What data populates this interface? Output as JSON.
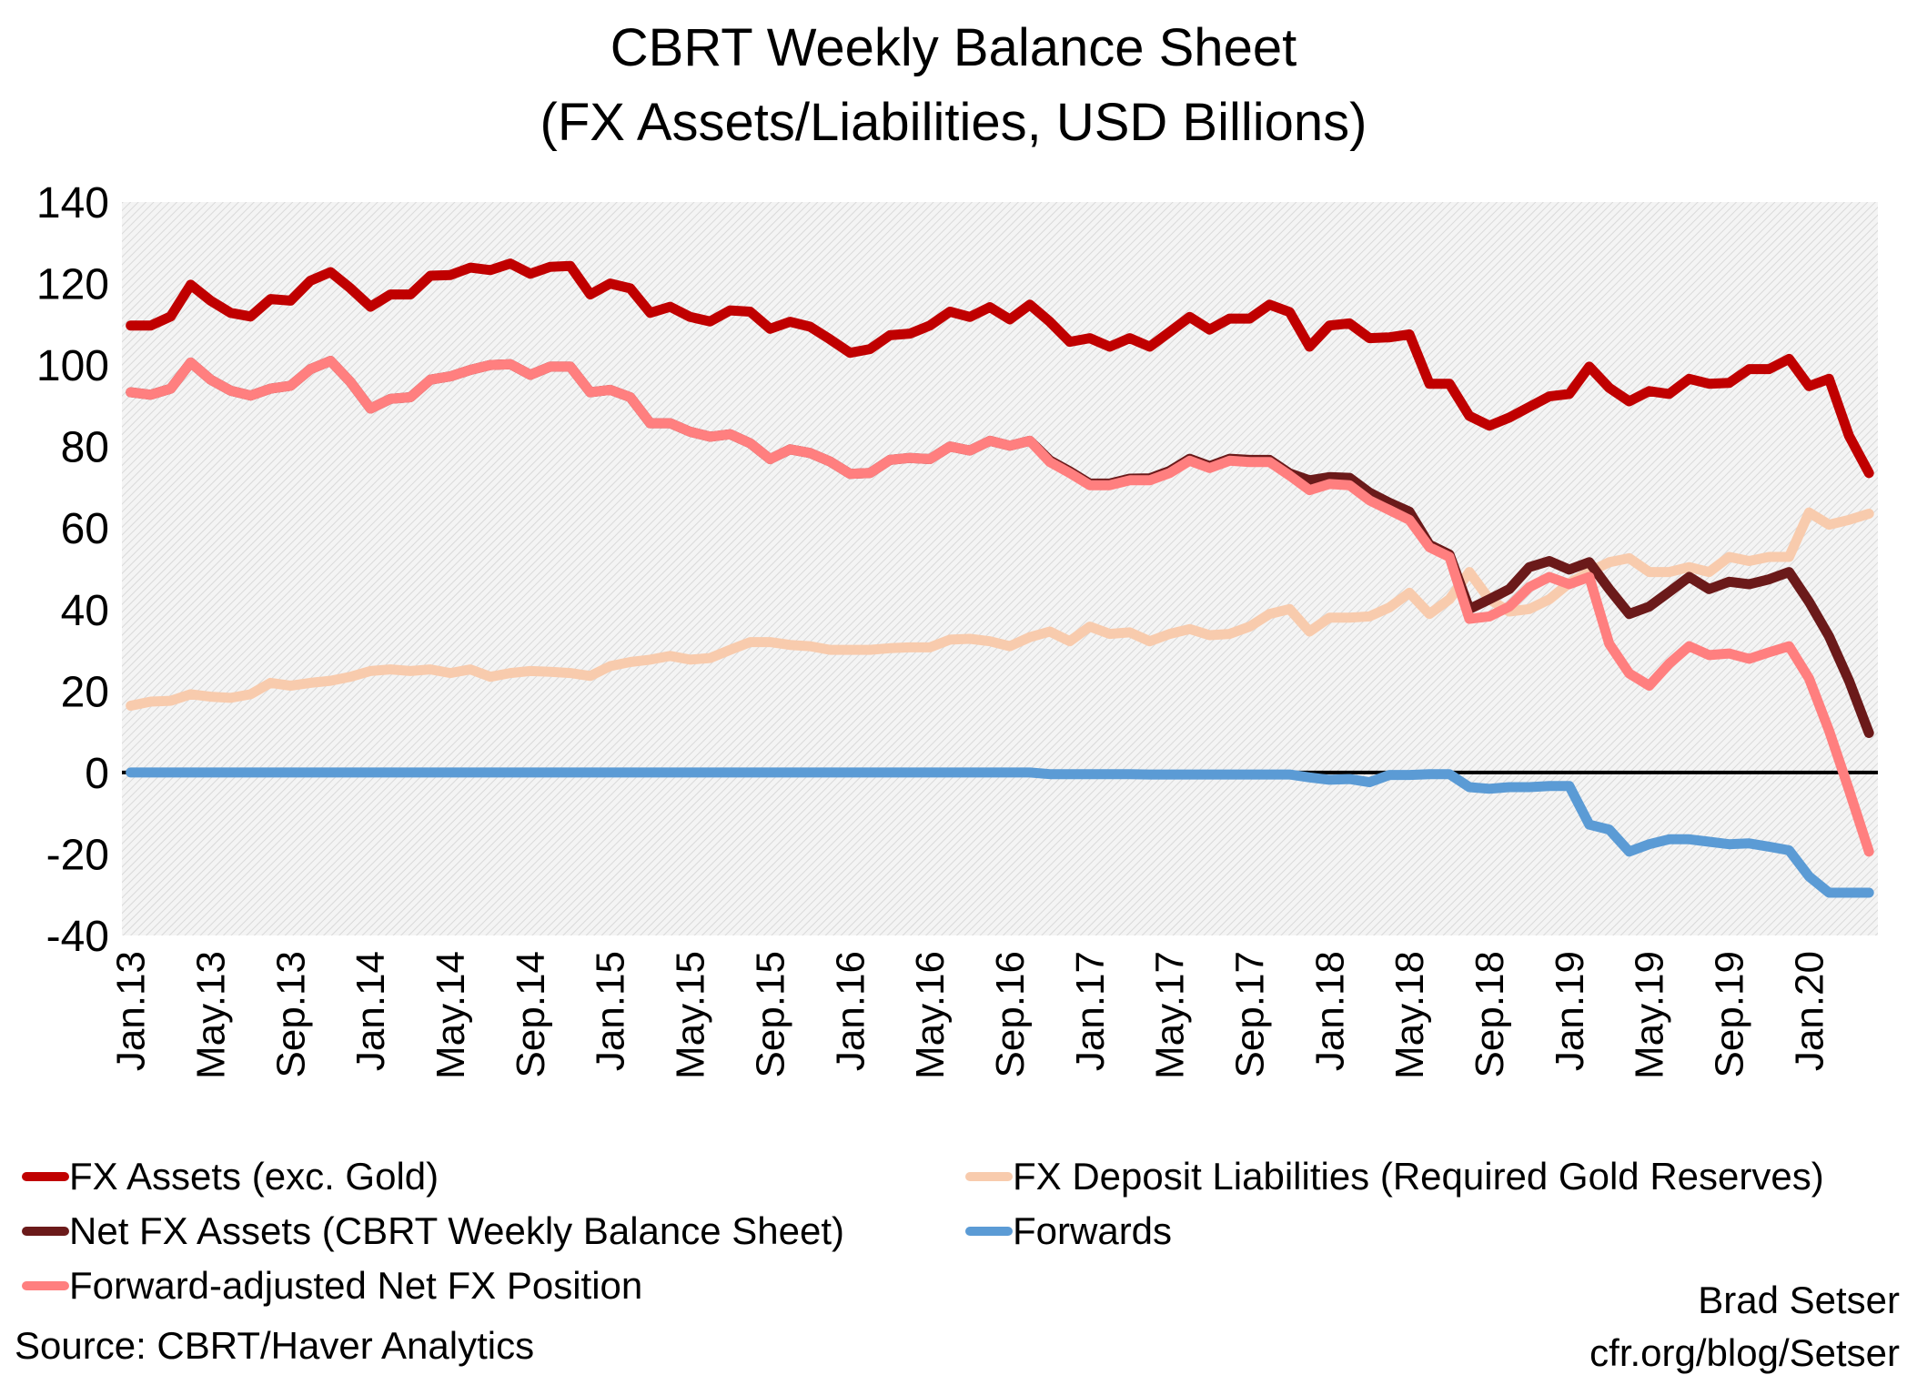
{
  "chart_data": {
    "type": "line",
    "title": "CBRT Weekly Balance Sheet",
    "subtitle": "(FX Assets/Liabilities, USD Billions)",
    "xlabel": "",
    "ylabel": "",
    "ylim": [
      -40,
      140
    ],
    "yticks": [
      140,
      120,
      100,
      80,
      60,
      40,
      20,
      0,
      -20,
      -40
    ],
    "xtick_labels": [
      "Jan.13",
      "May.13",
      "Sep.13",
      "Jan.14",
      "May.14",
      "Sep.14",
      "Jan.15",
      "May.15",
      "Sep.15",
      "Jan.16",
      "May.16",
      "Sep.16",
      "Jan.17",
      "May.17",
      "Sep.17",
      "Jan.18",
      "May.18",
      "Sep.18",
      "Jan.19",
      "May.19",
      "Sep.19",
      "Jan.20"
    ],
    "grid": false,
    "legend": "bottom",
    "x": [
      "Jan.13",
      "Feb.13",
      "Mar.13",
      "Apr.13",
      "May.13",
      "Jun.13",
      "Jul.13",
      "Aug.13",
      "Sep.13",
      "Oct.13",
      "Nov.13",
      "Dec.13",
      "Jan.14",
      "Feb.14",
      "Mar.14",
      "Apr.14",
      "May.14",
      "Jun.14",
      "Jul.14",
      "Aug.14",
      "Sep.14",
      "Oct.14",
      "Nov.14",
      "Dec.14",
      "Jan.15",
      "Feb.15",
      "Mar.15",
      "Apr.15",
      "May.15",
      "Jun.15",
      "Jul.15",
      "Aug.15",
      "Sep.15",
      "Oct.15",
      "Nov.15",
      "Dec.15",
      "Jan.16",
      "Feb.16",
      "Mar.16",
      "Apr.16",
      "May.16",
      "Jun.16",
      "Jul.16",
      "Aug.16",
      "Sep.16",
      "Oct.16",
      "Nov.16",
      "Dec.16",
      "Jan.17",
      "Feb.17",
      "Mar.17",
      "Apr.17",
      "May.17",
      "Jun.17",
      "Jul.17",
      "Aug.17",
      "Sep.17",
      "Oct.17",
      "Nov.17",
      "Dec.17",
      "Jan.18",
      "Feb.18",
      "Mar.18",
      "Apr.18",
      "May.18",
      "Jun.18",
      "Jul.18",
      "Aug.18",
      "Sep.18",
      "Oct.18",
      "Nov.18",
      "Dec.18",
      "Jan.19",
      "Feb.19",
      "Mar.19",
      "Apr.19",
      "May.19",
      "Jun.19",
      "Jul.19",
      "Aug.19",
      "Sep.19",
      "Oct.19",
      "Nov.19",
      "Dec.19",
      "Jan.20",
      "Feb.20",
      "Mar.20",
      "Apr.20"
    ],
    "series": [
      {
        "name": "FX Assets (exc. Gold)",
        "color": "#C00000",
        "values": [
          109.7,
          109.7,
          111.9,
          119.7,
          115.8,
          112.8,
          111.9,
          116.2,
          115.8,
          120.7,
          122.8,
          118.8,
          114.3,
          117.3,
          117.3,
          121.9,
          122.1,
          123.9,
          123.3,
          124.9,
          122.4,
          124.1,
          124.3,
          117.3,
          120.0,
          118.8,
          112.8,
          114.3,
          111.8,
          110.7,
          113.4,
          113.1,
          108.9,
          110.6,
          109.4,
          106.3,
          103.0,
          103.9,
          107.3,
          107.7,
          109.7,
          113.1,
          111.8,
          114.2,
          111.2,
          114.8,
          110.6,
          105.7,
          106.6,
          104.5,
          106.6,
          104.5,
          108.1,
          111.8,
          108.7,
          111.4,
          111.4,
          114.8,
          113.0,
          104.5,
          109.7,
          110.2,
          106.6,
          106.8,
          107.5,
          95.4,
          95.4,
          87.5,
          85.1,
          87.1,
          89.7,
          92.3,
          92.9,
          99.6,
          94.4,
          91.1,
          93.6,
          92.9,
          96.6,
          95.4,
          95.6,
          99.0,
          99.0,
          101.5,
          94.8,
          96.6,
          82.6,
          73.5
        ]
      },
      {
        "name": "FX Deposit Liabilities (Required Gold Reserves)",
        "color": "#F8CBAD",
        "values": [
          16.4,
          17.4,
          17.6,
          19.2,
          18.6,
          18.3,
          19.2,
          22.0,
          21.3,
          22.0,
          22.5,
          23.5,
          24.9,
          25.3,
          24.9,
          25.3,
          24.4,
          25.3,
          23.5,
          24.4,
          24.9,
          24.7,
          24.4,
          23.7,
          26.1,
          27.1,
          27.7,
          28.6,
          27.7,
          28.1,
          30.1,
          32.0,
          32.0,
          31.3,
          31.0,
          30.1,
          30.1,
          30.1,
          30.5,
          30.7,
          30.7,
          32.6,
          32.8,
          32.2,
          31.0,
          33.2,
          34.6,
          32.2,
          35.8,
          34.0,
          34.4,
          32.2,
          34.0,
          35.2,
          33.7,
          34.0,
          35.8,
          38.9,
          40.1,
          34.6,
          38.0,
          38.0,
          38.3,
          40.5,
          44.1,
          38.9,
          42.5,
          49.2,
          42.5,
          39.5,
          40.1,
          42.5,
          46.5,
          49.2,
          51.6,
          52.6,
          49.2,
          49.2,
          50.4,
          49.2,
          52.9,
          51.9,
          52.9,
          52.9,
          63.8,
          60.8,
          62.0,
          63.5
        ]
      },
      {
        "name": "Net FX Assets (CBRT Weekly Balance Sheet)",
        "color": "#6B1A1A",
        "values": [
          93.3,
          92.7,
          94.2,
          100.6,
          96.4,
          93.7,
          92.5,
          94.2,
          94.9,
          99.0,
          101.0,
          95.8,
          89.3,
          91.7,
          92.1,
          96.4,
          97.2,
          98.8,
          100.0,
          100.2,
          97.6,
          99.6,
          99.6,
          93.3,
          93.9,
          92.1,
          85.7,
          85.7,
          83.6,
          82.4,
          83.0,
          80.8,
          76.9,
          79.3,
          78.4,
          76.3,
          73.3,
          73.5,
          76.7,
          77.2,
          76.9,
          80.0,
          79.0,
          81.4,
          80.2,
          81.4,
          76.6,
          73.9,
          70.9,
          70.9,
          72.1,
          72.2,
          74.0,
          77.0,
          75.2,
          77.0,
          76.7,
          76.7,
          73.4,
          71.7,
          72.5,
          72.3,
          68.7,
          66.2,
          64.0,
          55.9,
          53.5,
          40.1,
          42.5,
          45.0,
          50.4,
          51.9,
          49.8,
          51.6,
          45.0,
          38.9,
          40.7,
          44.3,
          48.0,
          45.0,
          46.8,
          46.2,
          47.4,
          49.2,
          41.9,
          33.4,
          22.5,
          9.7
        ]
      },
      {
        "name": "Forward-adjusted Net FX Position",
        "color": "#FF7F7F",
        "values": [
          93.3,
          92.7,
          94.2,
          100.6,
          96.4,
          93.7,
          92.5,
          94.2,
          94.9,
          99.0,
          101.0,
          95.8,
          89.3,
          91.7,
          92.1,
          96.4,
          97.2,
          98.8,
          100.0,
          100.2,
          97.6,
          99.6,
          99.6,
          93.3,
          93.9,
          92.1,
          85.7,
          85.7,
          83.6,
          82.4,
          83.0,
          80.8,
          76.9,
          79.3,
          78.4,
          76.3,
          73.3,
          73.5,
          76.7,
          77.2,
          76.9,
          80.0,
          79.0,
          81.4,
          80.2,
          81.4,
          76.2,
          73.5,
          70.5,
          70.5,
          71.7,
          71.7,
          73.5,
          76.5,
          74.7,
          76.5,
          76.2,
          76.2,
          72.9,
          69.3,
          70.8,
          70.5,
          66.8,
          64.4,
          62.0,
          55.3,
          52.9,
          37.7,
          38.3,
          40.7,
          45.5,
          48.0,
          46.2,
          48.0,
          31.6,
          24.3,
          21.3,
          26.7,
          31.0,
          28.8,
          29.2,
          27.9,
          29.5,
          31.0,
          23.1,
          10.3,
          -4.3,
          -19.4
        ]
      },
      {
        "name": "Forwards",
        "color": "#5B9BD5",
        "values": [
          0,
          0,
          0,
          0,
          0,
          0,
          0,
          0,
          0,
          0,
          0,
          0,
          0,
          0,
          0,
          0,
          0,
          0,
          0,
          0,
          0,
          0,
          0,
          0,
          0,
          0,
          0,
          0,
          0,
          0,
          0,
          0,
          0,
          0,
          0,
          0,
          0,
          0,
          0,
          0,
          0,
          0,
          0,
          0,
          0,
          0,
          -0.4,
          -0.4,
          -0.4,
          -0.4,
          -0.4,
          -0.5,
          -0.5,
          -0.5,
          -0.5,
          -0.5,
          -0.5,
          -0.5,
          -0.5,
          -1.2,
          -1.8,
          -1.6,
          -2.4,
          -0.6,
          -0.6,
          -0.4,
          -0.4,
          -3.6,
          -4.0,
          -3.6,
          -3.6,
          -3.3,
          -3.3,
          -12.8,
          -14.0,
          -19.4,
          -17.6,
          -16.4,
          -16.4,
          -17.0,
          -17.6,
          -17.4,
          -18.2,
          -19.1,
          -25.5,
          -29.5,
          -29.5,
          -29.5
        ]
      }
    ]
  },
  "legend_order": [
    0,
    1,
    2,
    4,
    3
  ],
  "footer": {
    "source": "Source: CBRT/Haver Analytics",
    "author": "Brad Setser",
    "site": "cfr.org/blog/Setser"
  }
}
